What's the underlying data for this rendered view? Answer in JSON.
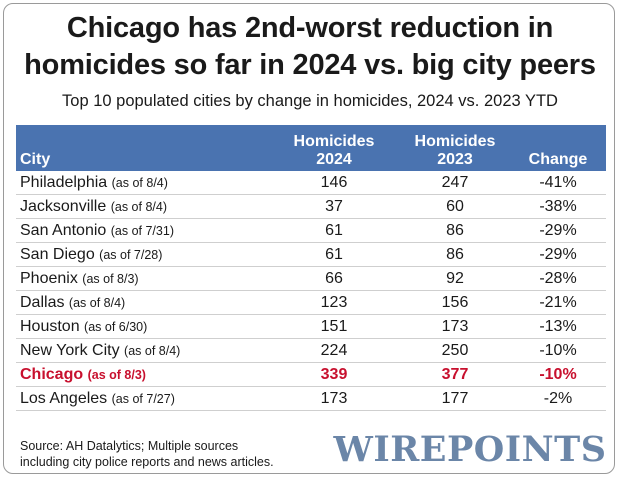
{
  "title_line1": "Chicago has 2nd-worst reduction in",
  "title_line2": "homicides so far in 2024 vs. big city peers",
  "subtitle": "Top 10 populated cities by change in homicides, 2024 vs. 2023 YTD",
  "source_line1": "Source: AH Datalytics; Multiple sources",
  "source_line2": "including city police reports and news articles.",
  "logo_text": "WIREPOINTS",
  "colors": {
    "header_bg": "#4a73b0",
    "highlight": "#c8102e",
    "logo": "#6b86a8"
  },
  "chart_data": {
    "type": "table",
    "columns": [
      {
        "line1": "",
        "line2": "City"
      },
      {
        "line1": "Homicides",
        "line2": "2024"
      },
      {
        "line1": "Homicides",
        "line2": "2023"
      },
      {
        "line1": "",
        "line2": "Change"
      }
    ],
    "rows": [
      {
        "city": "Philadelphia",
        "asof": "(as of 8/4)",
        "h2024": "146",
        "h2023": "247",
        "change": "-41%"
      },
      {
        "city": "Jacksonville",
        "asof": "(as of 8/4)",
        "h2024": "37",
        "h2023": "60",
        "change": "-38%"
      },
      {
        "city": "San Antonio",
        "asof": "(as of 7/31)",
        "h2024": "61",
        "h2023": "86",
        "change": "-29%"
      },
      {
        "city": "San Diego",
        "asof": "(as of 7/28)",
        "h2024": "61",
        "h2023": "86",
        "change": "-29%"
      },
      {
        "city": "Phoenix",
        "asof": "(as of 8/3)",
        "h2024": "66",
        "h2023": "92",
        "change": "-28%"
      },
      {
        "city": "Dallas",
        "asof": "(as of 8/4)",
        "h2024": "123",
        "h2023": "156",
        "change": "-21%"
      },
      {
        "city": "Houston",
        "asof": "(as of 6/30)",
        "h2024": "151",
        "h2023": "173",
        "change": "-13%"
      },
      {
        "city": "New York City",
        "asof": "(as of 8/4)",
        "h2024": "224",
        "h2023": "250",
        "change": "-10%"
      },
      {
        "city": "Chicago",
        "asof": "(as of 8/3)",
        "h2024": "339",
        "h2023": "377",
        "change": "-10%",
        "highlight": true
      },
      {
        "city": "Los Angeles",
        "asof": "(as of 7/27)",
        "h2024": "173",
        "h2023": "177",
        "change": "-2%"
      }
    ]
  }
}
